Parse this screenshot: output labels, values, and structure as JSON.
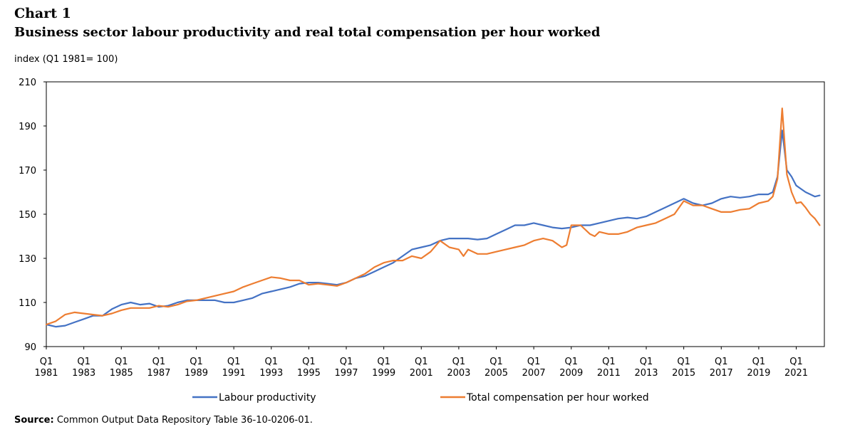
{
  "chart_label": "Chart 1",
  "chart_data": {
    "type": "line",
    "title": "Business sector labour productivity and real total compensation per hour worked",
    "ylabel": "index (Q1 1981= 100)",
    "ylim": [
      90,
      210
    ],
    "yticks": [
      90,
      110,
      130,
      150,
      170,
      190,
      210
    ],
    "grid": false,
    "x_start_year": 1981,
    "x_end": 2022.5,
    "xticks": [
      {
        "line1": "Q1",
        "line2": "1981",
        "x": 1981
      },
      {
        "line1": "Q1",
        "line2": "1983",
        "x": 1983
      },
      {
        "line1": "Q1",
        "line2": "1985",
        "x": 1985
      },
      {
        "line1": "Q1",
        "line2": "1987",
        "x": 1987
      },
      {
        "line1": "Q1",
        "line2": "1989",
        "x": 1989
      },
      {
        "line1": "Q1",
        "line2": "1991",
        "x": 1991
      },
      {
        "line1": "Q1",
        "line2": "1993",
        "x": 1993
      },
      {
        "line1": "Q1",
        "line2": "1995",
        "x": 1995
      },
      {
        "line1": "Q1",
        "line2": "1997",
        "x": 1997
      },
      {
        "line1": "Q1",
        "line2": "1999",
        "x": 1999
      },
      {
        "line1": "Q1",
        "line2": "2001",
        "x": 2001
      },
      {
        "line1": "Q1",
        "line2": "2003",
        "x": 2003
      },
      {
        "line1": "Q1",
        "line2": "2005",
        "x": 2005
      },
      {
        "line1": "Q1",
        "line2": "2007",
        "x": 2007
      },
      {
        "line1": "Q1",
        "line2": "2009",
        "x": 2009
      },
      {
        "line1": "Q1",
        "line2": "2011",
        "x": 2011
      },
      {
        "line1": "Q1",
        "line2": "2013",
        "x": 2013
      },
      {
        "line1": "Q1",
        "line2": "2015",
        "x": 2015
      },
      {
        "line1": "Q1",
        "line2": "2017",
        "x": 2017
      },
      {
        "line1": "Q1",
        "line2": "2019",
        "x": 2019
      },
      {
        "line1": "Q1",
        "line2": "2021",
        "x": 2021
      }
    ],
    "legend_position": "bottom",
    "series": [
      {
        "name": "Labour productivity",
        "color": "#4472C4",
        "points": [
          [
            1981.0,
            100
          ],
          [
            1981.5,
            99
          ],
          [
            1982.0,
            99.5
          ],
          [
            1982.5,
            101
          ],
          [
            1983.0,
            102.5
          ],
          [
            1983.5,
            104
          ],
          [
            1984.0,
            104
          ],
          [
            1984.5,
            107
          ],
          [
            1985.0,
            109
          ],
          [
            1985.5,
            110
          ],
          [
            1986.0,
            109
          ],
          [
            1986.5,
            109.5
          ],
          [
            1987.0,
            108
          ],
          [
            1987.5,
            108.5
          ],
          [
            1988.0,
            110
          ],
          [
            1988.5,
            111
          ],
          [
            1989.0,
            111
          ],
          [
            1989.5,
            111
          ],
          [
            1990.0,
            111
          ],
          [
            1990.5,
            110
          ],
          [
            1991.0,
            110
          ],
          [
            1991.5,
            111
          ],
          [
            1992.0,
            112
          ],
          [
            1992.5,
            114
          ],
          [
            1993.0,
            115
          ],
          [
            1993.5,
            116
          ],
          [
            1994.0,
            117
          ],
          [
            1994.5,
            118.5
          ],
          [
            1995.0,
            119
          ],
          [
            1995.5,
            119
          ],
          [
            1996.0,
            118.5
          ],
          [
            1996.5,
            118
          ],
          [
            1997.0,
            119
          ],
          [
            1997.5,
            121
          ],
          [
            1998.0,
            122
          ],
          [
            1998.5,
            124
          ],
          [
            1999.0,
            126
          ],
          [
            1999.5,
            128
          ],
          [
            2000.0,
            131
          ],
          [
            2000.5,
            134
          ],
          [
            2001.0,
            135
          ],
          [
            2001.5,
            136
          ],
          [
            2002.0,
            138
          ],
          [
            2002.5,
            139
          ],
          [
            2003.0,
            139
          ],
          [
            2003.5,
            139
          ],
          [
            2004.0,
            138.5
          ],
          [
            2004.5,
            139
          ],
          [
            2005.0,
            141
          ],
          [
            2005.5,
            143
          ],
          [
            2006.0,
            145
          ],
          [
            2006.5,
            145
          ],
          [
            2007.0,
            146
          ],
          [
            2007.5,
            145
          ],
          [
            2008.0,
            144
          ],
          [
            2008.5,
            143.5
          ],
          [
            2009.0,
            144
          ],
          [
            2009.5,
            145
          ],
          [
            2010.0,
            145
          ],
          [
            2010.5,
            146
          ],
          [
            2011.0,
            147
          ],
          [
            2011.5,
            148
          ],
          [
            2012.0,
            148.5
          ],
          [
            2012.5,
            148
          ],
          [
            2013.0,
            149
          ],
          [
            2013.5,
            151
          ],
          [
            2014.0,
            153
          ],
          [
            2014.5,
            155
          ],
          [
            2015.0,
            157
          ],
          [
            2015.5,
            155
          ],
          [
            2016.0,
            154
          ],
          [
            2016.5,
            155
          ],
          [
            2017.0,
            157
          ],
          [
            2017.5,
            158
          ],
          [
            2018.0,
            157.5
          ],
          [
            2018.5,
            158
          ],
          [
            2019.0,
            159
          ],
          [
            2019.5,
            159
          ],
          [
            2019.75,
            160
          ],
          [
            2020.0,
            167
          ],
          [
            2020.25,
            188
          ],
          [
            2020.5,
            170
          ],
          [
            2020.75,
            167
          ],
          [
            2021.0,
            163
          ],
          [
            2021.25,
            161.5
          ],
          [
            2021.5,
            160
          ],
          [
            2021.75,
            159
          ],
          [
            2022.0,
            158
          ],
          [
            2022.25,
            158.5
          ]
        ]
      },
      {
        "name": "Total compensation per hour worked",
        "color": "#ED7D31",
        "points": [
          [
            1981.0,
            100
          ],
          [
            1981.5,
            101.5
          ],
          [
            1982.0,
            104.5
          ],
          [
            1982.5,
            105.5
          ],
          [
            1983.0,
            105
          ],
          [
            1983.5,
            104.5
          ],
          [
            1984.0,
            104
          ],
          [
            1984.5,
            105
          ],
          [
            1985.0,
            106.5
          ],
          [
            1985.5,
            107.5
          ],
          [
            1986.0,
            107.5
          ],
          [
            1986.5,
            107.5
          ],
          [
            1987.0,
            108.5
          ],
          [
            1987.5,
            108
          ],
          [
            1988.0,
            109
          ],
          [
            1988.5,
            110.5
          ],
          [
            1989.0,
            111
          ],
          [
            1989.5,
            112
          ],
          [
            1990.0,
            113
          ],
          [
            1990.5,
            114
          ],
          [
            1991.0,
            115
          ],
          [
            1991.5,
            117
          ],
          [
            1992.0,
            118.5
          ],
          [
            1992.5,
            120
          ],
          [
            1993.0,
            121.5
          ],
          [
            1993.5,
            121
          ],
          [
            1994.0,
            120
          ],
          [
            1994.5,
            120
          ],
          [
            1995.0,
            118
          ],
          [
            1995.5,
            118.5
          ],
          [
            1996.0,
            118
          ],
          [
            1996.5,
            117.5
          ],
          [
            1997.0,
            119
          ],
          [
            1997.5,
            121
          ],
          [
            1998.0,
            123
          ],
          [
            1998.5,
            126
          ],
          [
            1999.0,
            128
          ],
          [
            1999.5,
            129
          ],
          [
            2000.0,
            129
          ],
          [
            2000.5,
            131
          ],
          [
            2001.0,
            130
          ],
          [
            2001.5,
            133
          ],
          [
            2002.0,
            138
          ],
          [
            2002.5,
            135
          ],
          [
            2003.0,
            134
          ],
          [
            2003.25,
            131
          ],
          [
            2003.5,
            134
          ],
          [
            2004.0,
            132
          ],
          [
            2004.5,
            132
          ],
          [
            2005.0,
            133
          ],
          [
            2005.5,
            134
          ],
          [
            2006.0,
            135
          ],
          [
            2006.5,
            136
          ],
          [
            2007.0,
            138
          ],
          [
            2007.5,
            139
          ],
          [
            2008.0,
            138
          ],
          [
            2008.5,
            135
          ],
          [
            2008.75,
            136
          ],
          [
            2009.0,
            145
          ],
          [
            2009.5,
            145
          ],
          [
            2010.0,
            141
          ],
          [
            2010.25,
            140
          ],
          [
            2010.5,
            142
          ],
          [
            2011.0,
            141
          ],
          [
            2011.5,
            141
          ],
          [
            2012.0,
            142
          ],
          [
            2012.5,
            144
          ],
          [
            2013.0,
            145
          ],
          [
            2013.5,
            146
          ],
          [
            2014.0,
            148
          ],
          [
            2014.5,
            150
          ],
          [
            2015.0,
            156
          ],
          [
            2015.5,
            154
          ],
          [
            2016.0,
            154
          ],
          [
            2016.5,
            152.5
          ],
          [
            2017.0,
            151
          ],
          [
            2017.5,
            151
          ],
          [
            2018.0,
            152
          ],
          [
            2018.5,
            152.5
          ],
          [
            2019.0,
            155
          ],
          [
            2019.5,
            156
          ],
          [
            2019.75,
            158
          ],
          [
            2020.0,
            166
          ],
          [
            2020.25,
            198
          ],
          [
            2020.5,
            168
          ],
          [
            2020.75,
            160
          ],
          [
            2021.0,
            155
          ],
          [
            2021.25,
            155.5
          ],
          [
            2021.5,
            153
          ],
          [
            2021.75,
            150
          ],
          [
            2022.0,
            148
          ],
          [
            2022.25,
            145
          ]
        ]
      }
    ]
  },
  "source": {
    "label": "Source:",
    "text": "Common Output Data Repository Table 36-10-0206-01."
  }
}
